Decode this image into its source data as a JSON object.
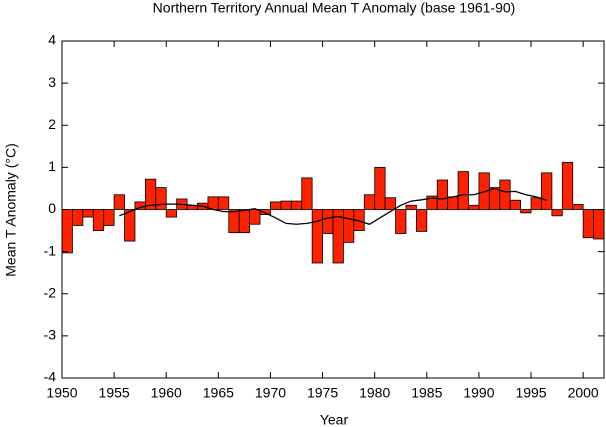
{
  "chart_data": {
    "type": "bar",
    "title": "Northern Territory Annual Mean T Anomaly (base 1961-90)",
    "x_label": "Year",
    "y_label": "Mean T Anomaly (°C)",
    "x": [
      1950,
      1951,
      1952,
      1953,
      1954,
      1955,
      1956,
      1957,
      1958,
      1959,
      1960,
      1961,
      1962,
      1963,
      1964,
      1965,
      1966,
      1967,
      1968,
      1969,
      1970,
      1971,
      1972,
      1973,
      1974,
      1975,
      1976,
      1977,
      1978,
      1979,
      1980,
      1981,
      1982,
      1983,
      1984,
      1985,
      1986,
      1987,
      1988,
      1989,
      1990,
      1991,
      1992,
      1993,
      1994,
      1995,
      1996,
      1997,
      1998,
      1999,
      2000,
      2001
    ],
    "values": [
      -1.03,
      -0.38,
      -0.18,
      -0.5,
      -0.38,
      0.35,
      -0.75,
      0.18,
      0.72,
      0.52,
      -0.18,
      0.25,
      0.1,
      0.15,
      0.3,
      0.3,
      -0.55,
      -0.55,
      -0.35,
      -0.12,
      0.18,
      0.2,
      0.2,
      0.75,
      -1.27,
      -0.57,
      -1.27,
      -0.78,
      -0.5,
      0.35,
      1.0,
      0.28,
      -0.57,
      0.1,
      -0.52,
      0.32,
      0.7,
      0.3,
      0.9,
      0.1,
      0.87,
      0.52,
      0.7,
      0.22,
      -0.08,
      0.28,
      0.87,
      -0.15,
      1.12,
      0.12,
      -0.67,
      -0.7
    ],
    "color": "#ff2200",
    "line": {
      "x": [
        1955,
        1956,
        1957,
        1958,
        1959,
        1960,
        1961,
        1962,
        1963,
        1964,
        1965,
        1966,
        1967,
        1968,
        1969,
        1970,
        1971,
        1972,
        1973,
        1974,
        1975,
        1976,
        1977,
        1978,
        1979,
        1980,
        1981,
        1982,
        1983,
        1984,
        1985,
        1986,
        1987,
        1988,
        1989,
        1990,
        1991,
        1992,
        1993,
        1994,
        1995,
        1996
      ],
      "values": [
        -0.15,
        -0.05,
        0.05,
        0.1,
        0.12,
        0.13,
        0.12,
        0.1,
        0.08,
        0.0,
        -0.05,
        -0.05,
        -0.02,
        0.02,
        -0.08,
        -0.2,
        -0.33,
        -0.35,
        -0.33,
        -0.28,
        -0.2,
        -0.17,
        -0.22,
        -0.27,
        -0.35,
        -0.2,
        -0.05,
        0.1,
        0.2,
        0.23,
        0.27,
        0.25,
        0.3,
        0.35,
        0.35,
        0.42,
        0.5,
        0.42,
        0.43,
        0.35,
        0.3,
        0.22
      ],
      "color": "#000000"
    },
    "xlim": [
      1950,
      2002
    ],
    "xticks": [
      1950,
      1955,
      1960,
      1965,
      1970,
      1975,
      1980,
      1985,
      1990,
      1995,
      2000
    ],
    "ylim": [
      -4,
      4
    ],
    "yticks": [
      -4,
      -3,
      -2,
      -1,
      0,
      1,
      2,
      3,
      4
    ]
  }
}
